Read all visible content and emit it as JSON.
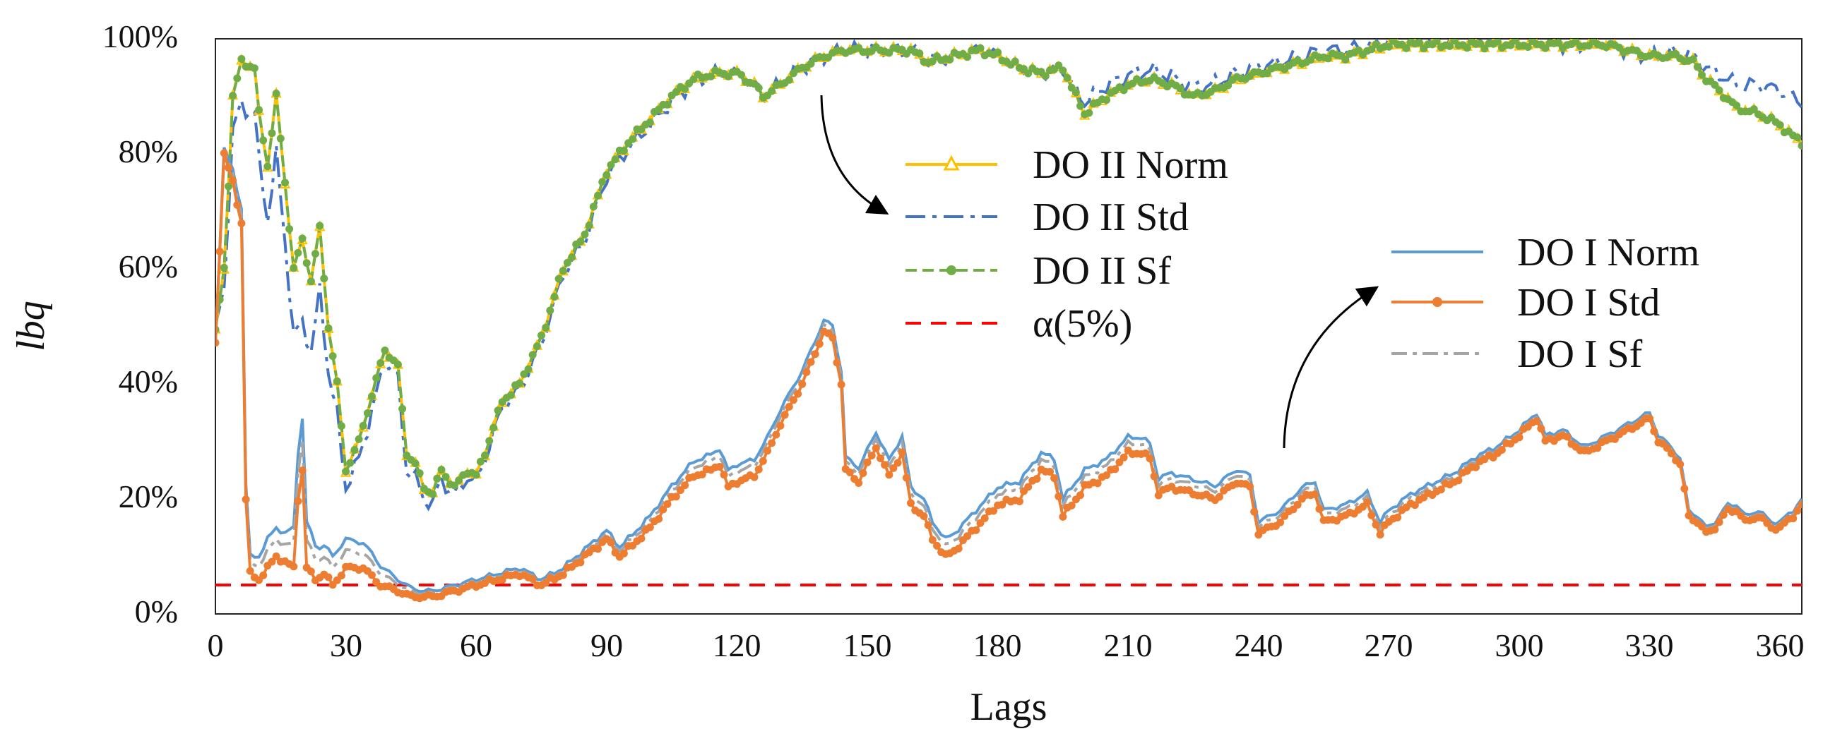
{
  "chart_data": {
    "type": "line",
    "title": "",
    "xlabel": "Lags",
    "ylabel": "lbq",
    "xlim": [
      0,
      365
    ],
    "ylim": [
      0,
      100
    ],
    "xticks": [
      0,
      30,
      60,
      90,
      120,
      150,
      180,
      210,
      240,
      270,
      300,
      330,
      360
    ],
    "yticks": [
      0,
      20,
      40,
      60,
      80,
      100
    ],
    "ytick_labels": [
      "0%",
      "20%",
      "40%",
      "60%",
      "80%",
      "100%"
    ],
    "grid": false,
    "threshold": {
      "name": "α(5%)",
      "value": 5,
      "color": "#ff0000"
    },
    "anchors": {
      "do2": [
        [
          0,
          49
        ],
        [
          2,
          60
        ],
        [
          4,
          90
        ],
        [
          6,
          96
        ],
        [
          9,
          95
        ],
        [
          10,
          87
        ],
        [
          12,
          78
        ],
        [
          14,
          90
        ],
        [
          16,
          75
        ],
        [
          18,
          60
        ],
        [
          20,
          65
        ],
        [
          22,
          58
        ],
        [
          24,
          67
        ],
        [
          26,
          50
        ],
        [
          28,
          40
        ],
        [
          30,
          25
        ],
        [
          33,
          30
        ],
        [
          36,
          38
        ],
        [
          39,
          46
        ],
        [
          42,
          43
        ],
        [
          44,
          28
        ],
        [
          46,
          26
        ],
        [
          48,
          22
        ],
        [
          50,
          21
        ],
        [
          52,
          25
        ],
        [
          55,
          22
        ],
        [
          58,
          25
        ],
        [
          60,
          24
        ],
        [
          62,
          28
        ],
        [
          66,
          37
        ],
        [
          70,
          40
        ],
        [
          75,
          48
        ],
        [
          80,
          60
        ],
        [
          85,
          66
        ],
        [
          90,
          77
        ],
        [
          95,
          82
        ],
        [
          100,
          86
        ],
        [
          105,
          90
        ],
        [
          110,
          93
        ],
        [
          115,
          94
        ],
        [
          120,
          94
        ],
        [
          124,
          92
        ],
        [
          126,
          90
        ],
        [
          130,
          92
        ],
        [
          135,
          95
        ],
        [
          140,
          97
        ],
        [
          145,
          98
        ],
        [
          150,
          98
        ],
        [
          155,
          98
        ],
        [
          160,
          98
        ],
        [
          164,
          96
        ],
        [
          170,
          97
        ],
        [
          176,
          98
        ],
        [
          180,
          97
        ],
        [
          185,
          95
        ],
        [
          190,
          94
        ],
        [
          195,
          95
        ],
        [
          198,
          90
        ],
        [
          200,
          87
        ],
        [
          205,
          90
        ],
        [
          210,
          92
        ],
        [
          215,
          93
        ],
        [
          220,
          92
        ],
        [
          225,
          90
        ],
        [
          230,
          91
        ],
        [
          235,
          93
        ],
        [
          240,
          94
        ],
        [
          245,
          95
        ],
        [
          250,
          96
        ],
        [
          255,
          97
        ],
        [
          260,
          97
        ],
        [
          265,
          98
        ],
        [
          270,
          99
        ],
        [
          280,
          99
        ],
        [
          290,
          99
        ],
        [
          300,
          99
        ],
        [
          310,
          99
        ],
        [
          320,
          99
        ],
        [
          325,
          98
        ],
        [
          330,
          97
        ],
        [
          336,
          97
        ],
        [
          340,
          96
        ],
        [
          343,
          93
        ],
        [
          346,
          91
        ],
        [
          350,
          88
        ],
        [
          355,
          87
        ],
        [
          360,
          85
        ],
        [
          363,
          83
        ],
        [
          365,
          82
        ]
      ],
      "do2_std_offset": [
        [
          0,
          0
        ],
        [
          4,
          -6
        ],
        [
          7,
          -8
        ],
        [
          10,
          -8
        ],
        [
          13,
          -10
        ],
        [
          16,
          -10
        ],
        [
          20,
          -14
        ],
        [
          23,
          -12
        ],
        [
          26,
          -8
        ],
        [
          30,
          -3
        ],
        [
          35,
          -3
        ],
        [
          40,
          -2
        ],
        [
          44,
          -3
        ],
        [
          48,
          -2
        ],
        [
          60,
          -1
        ],
        [
          100,
          -1
        ],
        [
          120,
          0
        ],
        [
          160,
          0
        ],
        [
          180,
          0
        ],
        [
          196,
          0
        ],
        [
          200,
          2
        ],
        [
          240,
          1
        ],
        [
          260,
          1
        ],
        [
          300,
          0
        ],
        [
          330,
          0
        ],
        [
          340,
          1
        ],
        [
          343,
          2
        ],
        [
          350,
          4
        ],
        [
          355,
          5
        ],
        [
          365,
          7
        ]
      ],
      "do1": [
        [
          0,
          47
        ],
        [
          2,
          80
        ],
        [
          4,
          75
        ],
        [
          6,
          68
        ],
        [
          7,
          20
        ],
        [
          8,
          7
        ],
        [
          10,
          6
        ],
        [
          12,
          8
        ],
        [
          14,
          10
        ],
        [
          16,
          9
        ],
        [
          18,
          8
        ],
        [
          19,
          20
        ],
        [
          20,
          25
        ],
        [
          21,
          8
        ],
        [
          23,
          6
        ],
        [
          25,
          7
        ],
        [
          27,
          5
        ],
        [
          30,
          8
        ],
        [
          34,
          8
        ],
        [
          38,
          5
        ],
        [
          42,
          4
        ],
        [
          45,
          3
        ],
        [
          50,
          3
        ],
        [
          55,
          4
        ],
        [
          60,
          5
        ],
        [
          65,
          6
        ],
        [
          70,
          7
        ],
        [
          75,
          5
        ],
        [
          80,
          7
        ],
        [
          85,
          10
        ],
        [
          90,
          13
        ],
        [
          93,
          10
        ],
        [
          96,
          12
        ],
        [
          100,
          15
        ],
        [
          105,
          20
        ],
        [
          110,
          24
        ],
        [
          114,
          25
        ],
        [
          116,
          26
        ],
        [
          118,
          22
        ],
        [
          120,
          23
        ],
        [
          124,
          24
        ],
        [
          127,
          28
        ],
        [
          130,
          33
        ],
        [
          135,
          40
        ],
        [
          140,
          49
        ],
        [
          142,
          48
        ],
        [
          144,
          40
        ],
        [
          145,
          25
        ],
        [
          148,
          23
        ],
        [
          150,
          26
        ],
        [
          152,
          29
        ],
        [
          155,
          24
        ],
        [
          158,
          28
        ],
        [
          160,
          19
        ],
        [
          163,
          17
        ],
        [
          165,
          13
        ],
        [
          168,
          10
        ],
        [
          170,
          11
        ],
        [
          175,
          15
        ],
        [
          180,
          19
        ],
        [
          185,
          20
        ],
        [
          190,
          25
        ],
        [
          193,
          24
        ],
        [
          195,
          17
        ],
        [
          198,
          20
        ],
        [
          200,
          22
        ],
        [
          205,
          24
        ],
        [
          210,
          28
        ],
        [
          213,
          28
        ],
        [
          215,
          27
        ],
        [
          217,
          21
        ],
        [
          220,
          22
        ],
        [
          225,
          21
        ],
        [
          230,
          20
        ],
        [
          235,
          23
        ],
        [
          238,
          22
        ],
        [
          240,
          14
        ],
        [
          245,
          16
        ],
        [
          250,
          20
        ],
        [
          253,
          21
        ],
        [
          255,
          16
        ],
        [
          260,
          17
        ],
        [
          265,
          19
        ],
        [
          268,
          14
        ],
        [
          270,
          16
        ],
        [
          275,
          19
        ],
        [
          280,
          21
        ],
        [
          285,
          23
        ],
        [
          290,
          26
        ],
        [
          295,
          28
        ],
        [
          300,
          31
        ],
        [
          304,
          34
        ],
        [
          306,
          30
        ],
        [
          310,
          31
        ],
        [
          315,
          28
        ],
        [
          320,
          30
        ],
        [
          325,
          32
        ],
        [
          330,
          34
        ],
        [
          332,
          30
        ],
        [
          335,
          28
        ],
        [
          337,
          26
        ],
        [
          339,
          17
        ],
        [
          341,
          16
        ],
        [
          343,
          14
        ],
        [
          345,
          15
        ],
        [
          348,
          18
        ],
        [
          350,
          18
        ],
        [
          352,
          16
        ],
        [
          355,
          17
        ],
        [
          358,
          15
        ],
        [
          360,
          15
        ],
        [
          363,
          17
        ],
        [
          365,
          19
        ]
      ],
      "do1_norm_offset": [
        [
          0,
          0
        ],
        [
          4,
          2
        ],
        [
          8,
          3
        ],
        [
          12,
          5
        ],
        [
          16,
          5
        ],
        [
          20,
          9
        ],
        [
          24,
          5
        ],
        [
          30,
          5
        ],
        [
          36,
          4
        ],
        [
          42,
          2
        ],
        [
          48,
          1
        ],
        [
          80,
          1
        ],
        [
          120,
          3
        ],
        [
          140,
          2
        ],
        [
          160,
          3
        ],
        [
          200,
          3
        ],
        [
          240,
          2
        ],
        [
          270,
          2
        ],
        [
          300,
          1
        ],
        [
          330,
          1
        ],
        [
          340,
          1
        ],
        [
          365,
          1
        ]
      ]
    },
    "series": [
      {
        "name": "DO II Norm",
        "color": "#ffc000",
        "marker": "triangle",
        "dash": "solid"
      },
      {
        "name": "DO II Std",
        "color": "#4472c4",
        "marker": "none",
        "dash": "dashdot"
      },
      {
        "name": "DO II Sf",
        "color": "#70ad47",
        "marker": "dot",
        "dash": "dash"
      },
      {
        "name": "DO I Norm",
        "color": "#5b9bd5",
        "marker": "none",
        "dash": "solid"
      },
      {
        "name": "DO I Std",
        "color": "#ed7d31",
        "marker": "dot",
        "dash": "solid"
      },
      {
        "name": "DO I Sf",
        "color": "#a5a5a5",
        "marker": "none",
        "dash": "dashdot"
      }
    ],
    "legend_do2": [
      "DO II Norm",
      "DO II Std",
      "DO II Sf",
      "α(5%)"
    ],
    "legend_do1": [
      "DO I Norm",
      "DO I Std",
      "DO I Sf"
    ]
  }
}
